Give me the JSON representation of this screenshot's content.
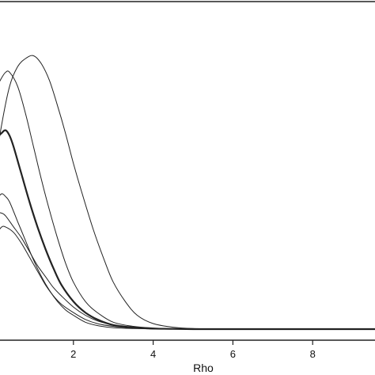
{
  "chart_data": {
    "type": "line",
    "title": "",
    "xlabel": "Rho",
    "ylabel": "",
    "xlim": [
      0,
      10
    ],
    "ylim": [
      0,
      1.02
    ],
    "xticks": [
      2,
      4,
      6,
      8
    ],
    "xtick_labels": [
      "2",
      "4",
      "6",
      "8"
    ],
    "grid": false,
    "legend": "none",
    "line_color": "#222222",
    "series": [
      {
        "emphasis": "normal",
        "x": [
          0.0,
          0.2,
          0.4,
          0.6,
          0.8,
          1.0,
          1.2,
          1.4,
          1.6,
          1.8,
          2.0,
          2.2,
          2.5,
          2.8,
          3.0,
          3.3,
          3.6,
          4.0,
          4.5,
          5.0,
          5.5,
          6.0,
          7.0,
          8.0,
          9.0,
          10.0
        ],
        "y": [
          0.56,
          0.74,
          0.88,
          0.95,
          0.98,
          0.99,
          0.96,
          0.9,
          0.81,
          0.71,
          0.6,
          0.5,
          0.36,
          0.24,
          0.17,
          0.1,
          0.05,
          0.02,
          0.007,
          0.002,
          0.001,
          0.0,
          0.0,
          0.0,
          0.0,
          0.0
        ]
      },
      {
        "emphasis": "normal",
        "x": [
          0.0,
          0.1,
          0.2,
          0.3,
          0.4,
          0.6,
          0.8,
          1.0,
          1.2,
          1.4,
          1.6,
          1.8,
          2.0,
          2.3,
          2.6,
          3.0,
          3.5,
          4.0,
          4.5,
          5.0,
          6.0,
          7.0,
          8.0,
          9.0,
          10.0
        ],
        "y": [
          0.83,
          0.88,
          0.91,
          0.93,
          0.93,
          0.88,
          0.78,
          0.66,
          0.54,
          0.43,
          0.33,
          0.24,
          0.17,
          0.1,
          0.06,
          0.025,
          0.01,
          0.004,
          0.001,
          0.0,
          0.0,
          0.0,
          0.0,
          0.0,
          0.0
        ]
      },
      {
        "emphasis": "bold",
        "x": [
          0.0,
          0.1,
          0.2,
          0.3,
          0.4,
          0.5,
          0.7,
          0.9,
          1.1,
          1.3,
          1.5,
          1.7,
          2.0,
          2.3,
          2.6,
          3.0,
          3.5,
          4.0,
          4.5,
          5.0,
          6.0,
          7.0,
          8.0,
          9.0,
          10.0
        ],
        "y": [
          0.62,
          0.69,
          0.71,
          0.72,
          0.7,
          0.66,
          0.56,
          0.46,
          0.37,
          0.29,
          0.22,
          0.16,
          0.1,
          0.06,
          0.035,
          0.015,
          0.006,
          0.002,
          0.001,
          0.0,
          0.0,
          0.0,
          0.0,
          0.0,
          0.0
        ]
      },
      {
        "emphasis": "normal",
        "x": [
          0.0,
          0.1,
          0.2,
          0.3,
          0.4,
          0.6,
          0.8,
          1.0,
          1.2,
          1.4,
          1.6,
          1.8,
          2.0,
          2.3,
          2.6,
          3.0,
          3.5,
          4.0,
          4.5,
          5.0,
          6.0,
          7.0,
          8.0,
          9.0,
          10.0
        ],
        "y": [
          0.42,
          0.47,
          0.49,
          0.48,
          0.46,
          0.39,
          0.32,
          0.25,
          0.19,
          0.14,
          0.1,
          0.07,
          0.05,
          0.025,
          0.013,
          0.005,
          0.002,
          0.001,
          0.0,
          0.0,
          0.0,
          0.0,
          0.0,
          0.0,
          0.0
        ]
      },
      {
        "emphasis": "normal",
        "x": [
          0.0,
          0.1,
          0.2,
          0.3,
          0.5,
          0.7,
          0.9,
          1.1,
          1.3,
          1.5,
          1.7,
          2.0,
          2.3,
          2.6,
          3.0,
          3.5,
          4.0,
          4.5,
          5.0,
          6.0,
          7.0,
          8.0,
          9.0,
          10.0
        ],
        "y": [
          0.4,
          0.42,
          0.42,
          0.41,
          0.37,
          0.33,
          0.28,
          0.23,
          0.19,
          0.15,
          0.12,
          0.08,
          0.05,
          0.03,
          0.015,
          0.006,
          0.002,
          0.001,
          0.0,
          0.0,
          0.0,
          0.0,
          0.0,
          0.0
        ]
      },
      {
        "emphasis": "normal",
        "x": [
          0.0,
          0.1,
          0.2,
          0.3,
          0.5,
          0.7,
          0.9,
          1.1,
          1.3,
          1.5,
          1.7,
          2.0,
          2.3,
          2.6,
          3.0,
          3.5,
          4.0,
          4.5,
          5.0,
          6.0,
          7.0,
          8.0,
          9.0,
          10.0
        ],
        "y": [
          0.32,
          0.35,
          0.37,
          0.37,
          0.35,
          0.31,
          0.26,
          0.21,
          0.16,
          0.12,
          0.09,
          0.06,
          0.035,
          0.02,
          0.01,
          0.004,
          0.001,
          0.0,
          0.0,
          0.0,
          0.0,
          0.0,
          0.0,
          0.0
        ]
      }
    ]
  }
}
